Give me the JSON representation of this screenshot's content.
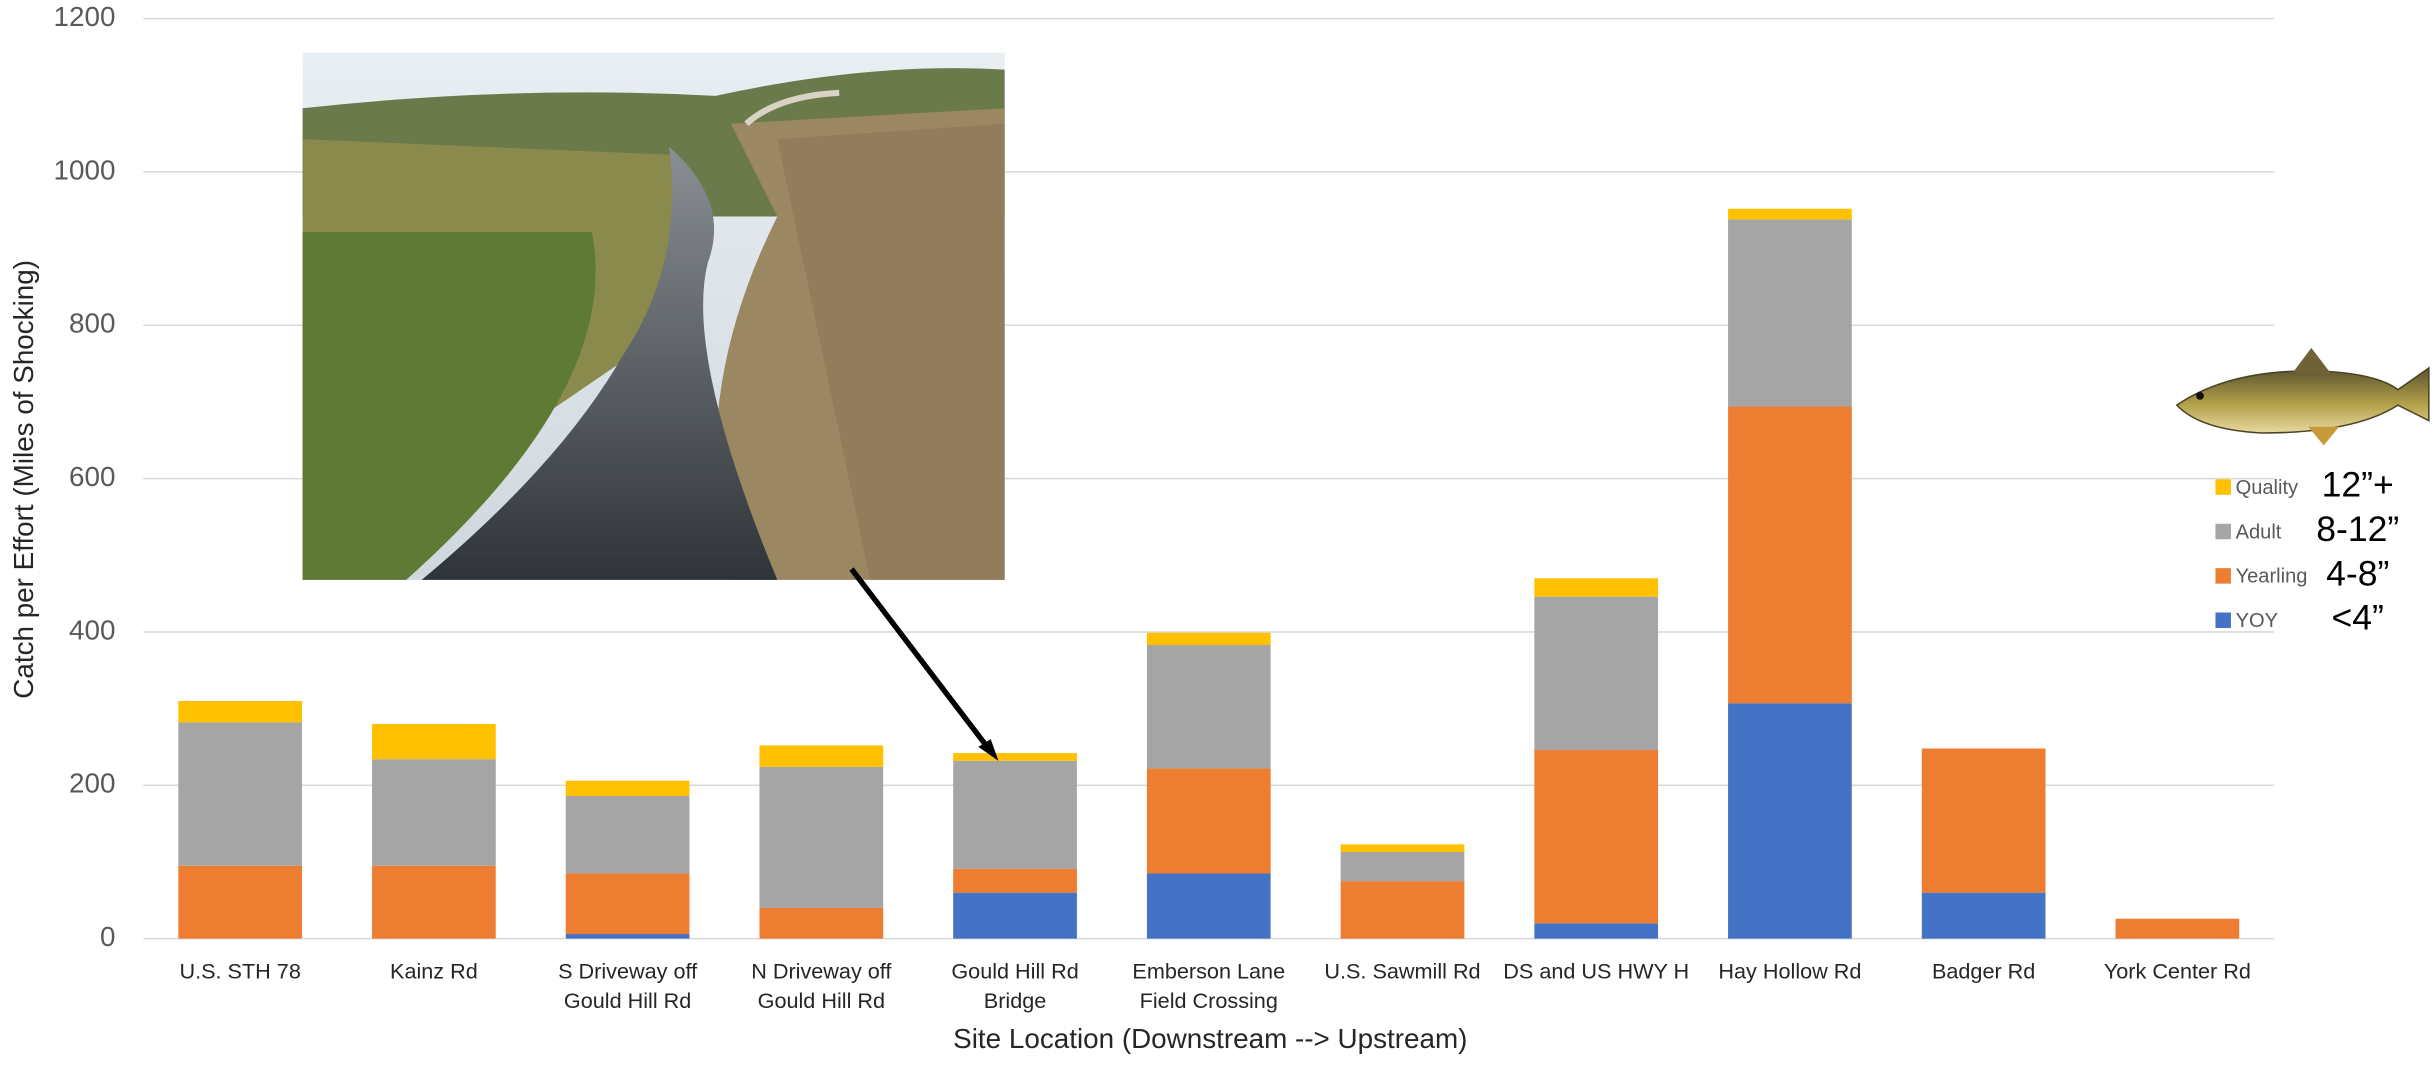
{
  "chart_data": {
    "type": "stacked_bar",
    "x_label": "Site Location (Downstream --> Upstream)",
    "y_label": "Catch per Effort (Miles of Shocking)",
    "categories": [
      "U.S. STH 78",
      "Kainz Rd",
      "S Driveway off\nGould Hill Rd",
      "N Driveway off\nGould Hill Rd",
      "Gould Hill Rd\nBridge",
      "Emberson Lane\nField Crossing",
      "U.S. Sawmill Rd",
      "DS and US HWY H",
      "Hay Hollow Rd",
      "Badger Rd",
      "York Center Rd"
    ],
    "series": [
      {
        "name": "YOY",
        "size_label": "<4”",
        "color": "#4472c4",
        "values": [
          0,
          0,
          6,
          0,
          60,
          85,
          0,
          20,
          307,
          60,
          0
        ]
      },
      {
        "name": "Yearling",
        "size_label": "4-8”",
        "color": "#ed7d31",
        "values": [
          95,
          95,
          79,
          40,
          31,
          137,
          75,
          226,
          387,
          188,
          26
        ]
      },
      {
        "name": "Adult",
        "size_label": "8-12”",
        "color": "#a5a5a5",
        "values": [
          187,
          139,
          101,
          184,
          141,
          161,
          38,
          200,
          244,
          0,
          0
        ]
      },
      {
        "name": "Quality",
        "size_label": "12”+",
        "color": "#ffc000",
        "values": [
          28,
          46,
          20,
          28,
          10,
          16,
          10,
          24,
          14,
          0,
          0
        ]
      }
    ],
    "ylim": [
      0,
      1200
    ],
    "yticks": [
      0,
      200,
      400,
      600,
      800,
      1000,
      1200
    ],
    "grid": true,
    "legend_position": "right"
  }
}
